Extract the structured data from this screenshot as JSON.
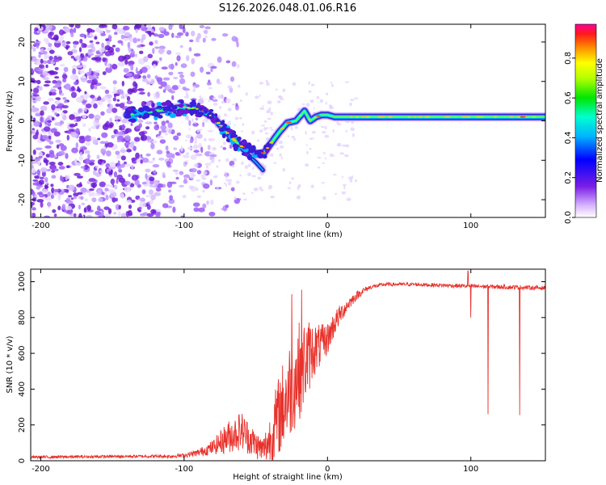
{
  "title": "S126.2026.048.01.06.R16",
  "colors": {
    "snr_line": "#e8322c",
    "frame": "#000000",
    "speckle": "#7a2ae0",
    "ridge_edge": "#2020c8"
  },
  "chart_data": [
    {
      "type": "heatmap",
      "name": "spectrogram",
      "xlabel": "Height of straight line (km)",
      "ylabel": "Frequency (Hz)",
      "xlim": [
        -207,
        152
      ],
      "ylim": [
        -24.5,
        24.5
      ],
      "xticks": [
        -200,
        -100,
        0,
        100
      ],
      "xtick_labels": [
        "-200",
        "-100",
        "0",
        "100"
      ],
      "yticks": [
        -20,
        -10,
        0,
        10,
        20
      ],
      "ytick_labels": [
        "-20",
        "-10",
        "0",
        "10",
        "20"
      ],
      "colorbar": {
        "label": "Normalized spectral amplitude",
        "range": [
          0,
          0.97
        ],
        "ticks": [
          0,
          0.2,
          0.4,
          0.6,
          0.8
        ],
        "tick_labels": [
          "0.0",
          "0.2",
          "0.4",
          "0.6",
          "0.8"
        ]
      },
      "ridge": {
        "x": [
          -140,
          -120,
          -100,
          -90,
          -80,
          -70,
          -62,
          -55,
          -48,
          -44,
          -40,
          -34,
          -28,
          -22,
          -16,
          -12,
          -8,
          -4,
          0,
          5,
          10,
          20,
          40,
          80,
          120,
          152
        ],
        "y": [
          1.5,
          2.5,
          3.5,
          3,
          1,
          -3,
          -6,
          -7.5,
          -8.5,
          -8,
          -6,
          -3,
          -0.5,
          0,
          2.5,
          0,
          1,
          1.5,
          1.5,
          1,
          1,
          1,
          1,
          1,
          1,
          1
        ],
        "secondary_branch_x": [
          -60,
          -50,
          -45
        ],
        "secondary_branch_y": [
          -7,
          -10.5,
          -12.5
        ]
      },
      "noise_region_x": [
        -207,
        -100
      ]
    },
    {
      "type": "line",
      "name": "snr",
      "xlabel": "Height of straight line (km)",
      "ylabel": "SNR (10 * v/v)",
      "xlim": [
        -207,
        152
      ],
      "ylim": [
        0,
        1070
      ],
      "xticks": [
        -200,
        -100,
        0,
        100
      ],
      "xtick_labels": [
        "-200",
        "-100",
        "0",
        "100"
      ],
      "yticks": [
        0,
        200,
        400,
        600,
        800,
        1000
      ],
      "ytick_labels": [
        "0",
        "200",
        "400",
        "600",
        "800",
        "1000"
      ],
      "envelope": {
        "x": [
          -207,
          -130,
          -110,
          -100,
          -90,
          -80,
          -70,
          -60,
          -50,
          -45,
          -40,
          -35,
          -30,
          -25,
          -20,
          -15,
          -10,
          -5,
          0,
          5,
          10,
          15,
          20,
          25,
          30,
          40,
          60,
          100,
          152
        ],
        "y": [
          20,
          25,
          25,
          30,
          45,
          75,
          130,
          170,
          90,
          60,
          120,
          230,
          330,
          420,
          500,
          560,
          620,
          640,
          680,
          770,
          830,
          880,
          920,
          950,
          970,
          985,
          985,
          975,
          965
        ],
        "noise_amplitude": [
          8,
          8,
          10,
          12,
          20,
          40,
          90,
          110,
          80,
          70,
          150,
          220,
          260,
          280,
          280,
          240,
          160,
          120,
          90,
          70,
          50,
          35,
          25,
          18,
          12,
          10,
          10,
          12,
          12
        ]
      },
      "dips": [
        {
          "x": 100,
          "y": 800
        },
        {
          "x": 112,
          "y": 260
        },
        {
          "x": 134,
          "y": 255
        }
      ],
      "spikes": [
        {
          "x": -25,
          "y": 930
        },
        {
          "x": -18,
          "y": 955
        },
        {
          "x": 98,
          "y": 1060
        }
      ]
    }
  ]
}
